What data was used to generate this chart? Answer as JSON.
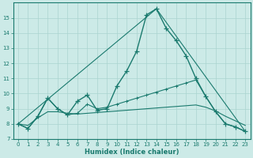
{
  "xlabel": "Humidex (Indice chaleur)",
  "background_color": "#cceae7",
  "grid_color": "#aad4d0",
  "line_color": "#1a7a6e",
  "xlim": [
    -0.5,
    23.5
  ],
  "ylim": [
    7,
    16
  ],
  "yticks": [
    7,
    8,
    9,
    10,
    11,
    12,
    13,
    14,
    15
  ],
  "xticks": [
    0,
    1,
    2,
    3,
    4,
    5,
    6,
    7,
    8,
    9,
    10,
    11,
    12,
    13,
    14,
    15,
    16,
    17,
    18,
    19,
    20,
    21,
    22,
    23
  ],
  "line1_x": [
    0,
    1,
    2,
    3,
    4,
    5,
    6,
    7,
    8,
    9,
    10,
    11,
    12,
    13,
    14,
    15,
    16,
    17,
    18,
    19,
    20,
    21,
    22,
    23
  ],
  "line1_y": [
    8.0,
    7.7,
    8.5,
    9.7,
    9.0,
    8.6,
    9.5,
    9.9,
    8.9,
    9.0,
    10.5,
    11.5,
    12.8,
    15.2,
    15.6,
    14.3,
    13.5,
    12.5,
    11.0,
    9.8,
    8.8,
    8.0,
    7.8,
    7.5
  ],
  "line2_x": [
    0,
    1,
    2,
    3,
    4,
    5,
    6,
    7,
    8,
    9,
    10,
    11,
    12,
    13,
    14,
    15,
    16,
    17,
    18,
    19,
    20,
    21,
    22,
    23
  ],
  "line2_y": [
    8.0,
    7.7,
    8.5,
    9.7,
    9.0,
    8.6,
    8.7,
    9.3,
    9.0,
    9.1,
    9.3,
    9.5,
    9.7,
    9.9,
    10.1,
    10.3,
    10.5,
    10.7,
    10.9,
    9.8,
    8.8,
    8.0,
    7.8,
    7.5
  ],
  "line3_x": [
    0,
    1,
    2,
    3,
    4,
    5,
    6,
    7,
    8,
    9,
    10,
    11,
    12,
    13,
    14,
    15,
    16,
    17,
    18,
    19,
    20,
    21,
    22,
    23
  ],
  "line3_y": [
    8.0,
    7.9,
    8.4,
    8.8,
    8.8,
    8.7,
    8.65,
    8.7,
    8.75,
    8.8,
    8.85,
    8.9,
    8.95,
    9.0,
    9.05,
    9.1,
    9.15,
    9.2,
    9.25,
    9.1,
    8.85,
    8.5,
    8.2,
    7.9
  ],
  "line4_x": [
    0,
    14,
    23
  ],
  "line4_y": [
    8.0,
    15.6,
    7.5
  ]
}
